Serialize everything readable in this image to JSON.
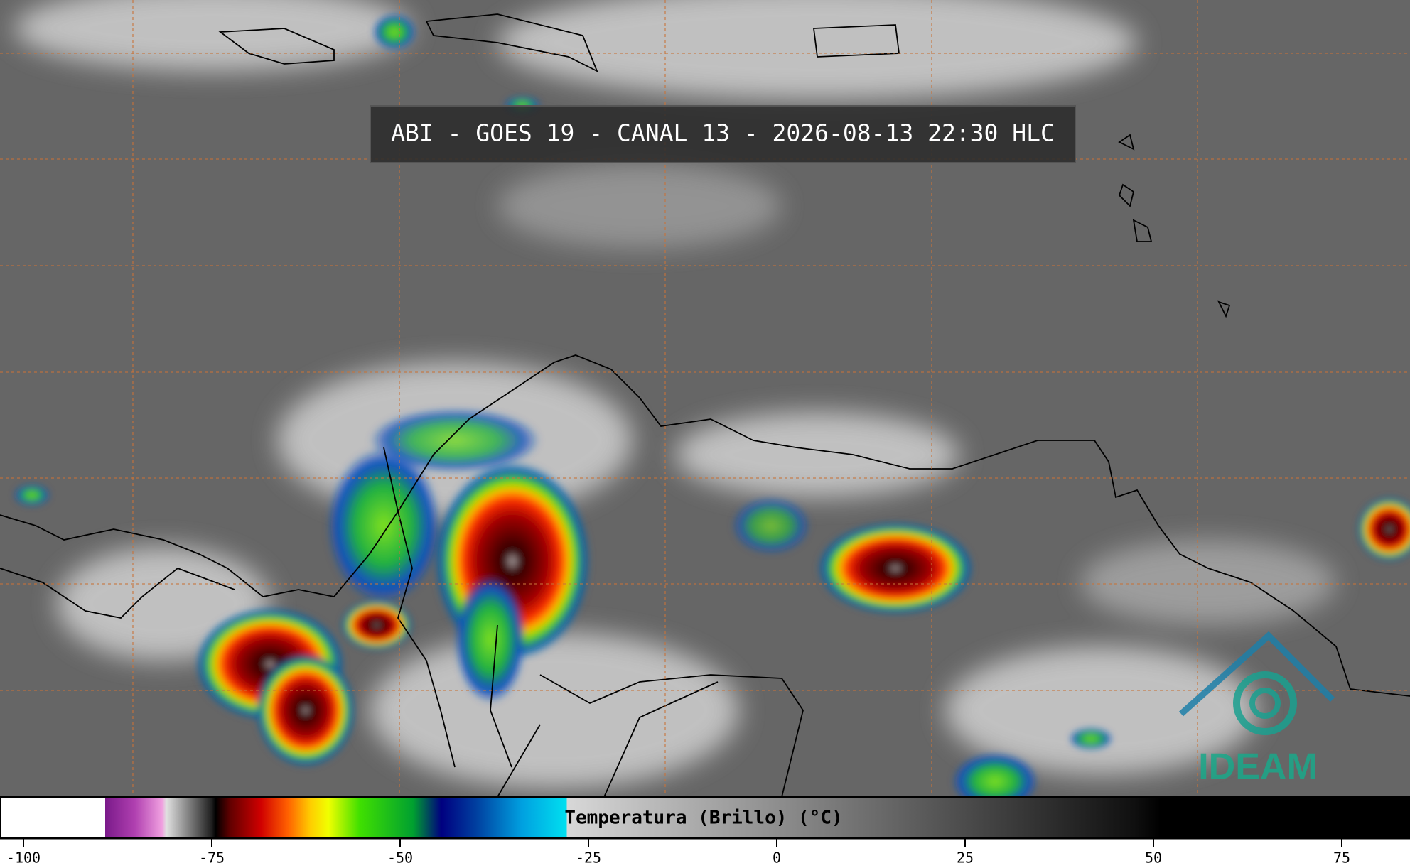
{
  "header": {
    "title": "ABI - GOES 19 - CANAL 13 - 2026-08-13 22:30 HLC"
  },
  "colorbar": {
    "label": "Temperatura (Brillo) (°C)",
    "ticks": [
      -100,
      -75,
      -50,
      -25,
      0,
      25,
      50,
      75
    ]
  },
  "logo": {
    "text": "IDEAM"
  }
}
